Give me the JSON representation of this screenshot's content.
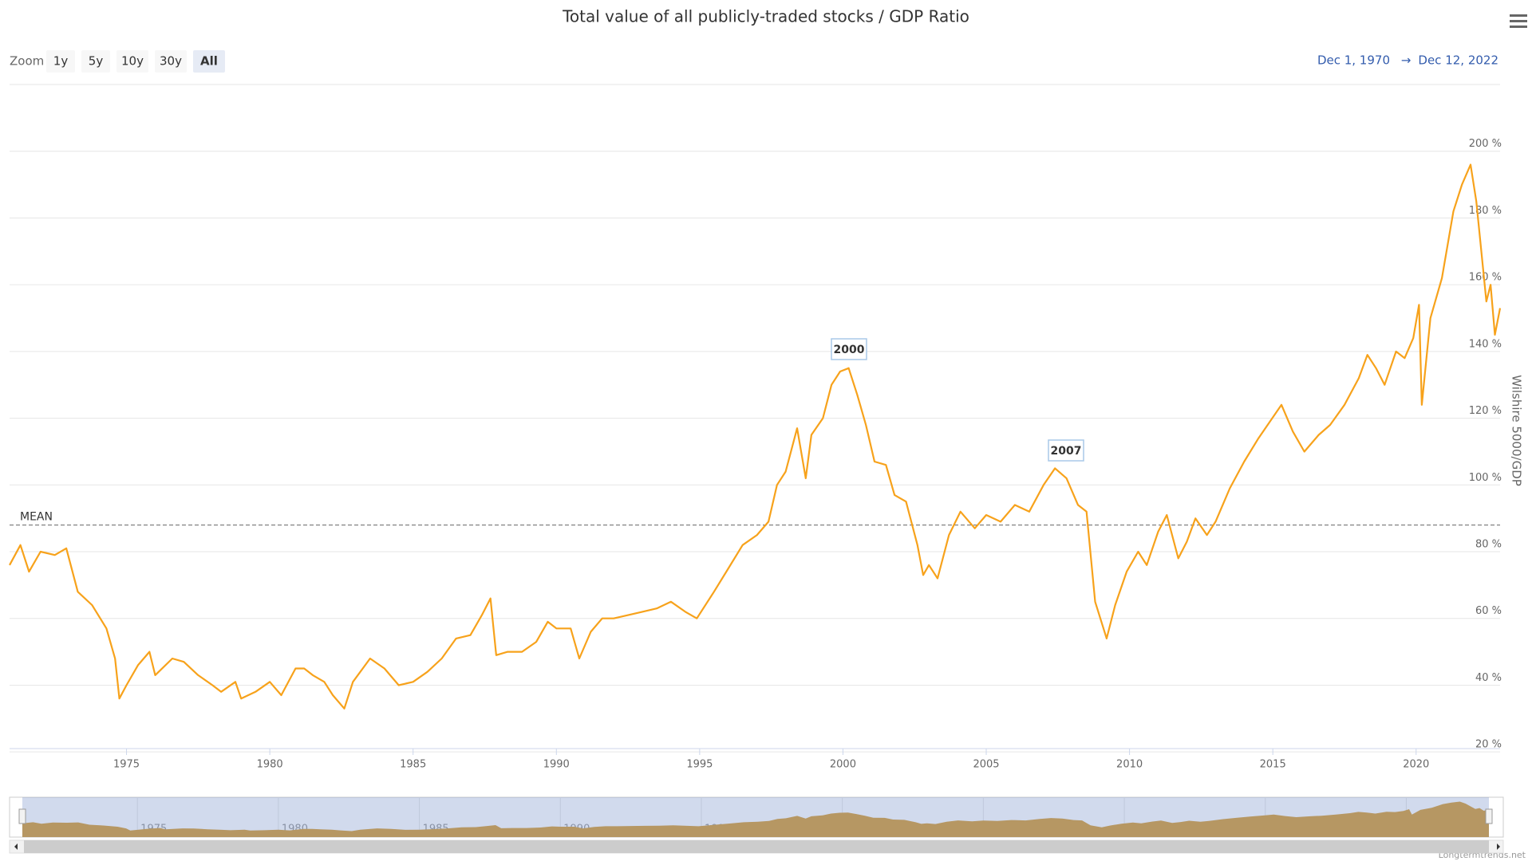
{
  "chart_data": {
    "type": "line",
    "title": "Total value of all publicly-traded stocks / GDP Ratio",
    "y_axis_title": "Wilshire 5000/GDP",
    "zoom": {
      "label": "Zoom",
      "buttons": [
        "1y",
        "5y",
        "10y",
        "30y",
        "All"
      ],
      "selected_index": 4
    },
    "range": {
      "from": "Dec 1, 1970",
      "arrow": "→",
      "to": "Dec 12, 2022"
    },
    "credits": "Longtermtrends.net",
    "mean": {
      "label": "MEAN",
      "value": 88
    },
    "annotations": [
      "2000",
      "2007"
    ],
    "x": [
      1970.92,
      1971.3,
      1971.6,
      1972.0,
      1972.5,
      1972.9,
      1973.3,
      1973.8,
      1974.3,
      1974.6,
      1974.75,
      1975.0,
      1975.4,
      1975.8,
      1976.0,
      1976.6,
      1977.0,
      1977.5,
      1978.0,
      1978.3,
      1978.8,
      1979.0,
      1979.5,
      1980.0,
      1980.4,
      1980.9,
      1981.2,
      1981.5,
      1981.9,
      1982.2,
      1982.6,
      1982.9,
      1983.5,
      1984.0,
      1984.5,
      1985.0,
      1985.5,
      1986.0,
      1986.5,
      1987.0,
      1987.4,
      1987.7,
      1987.9,
      1988.3,
      1988.8,
      1989.3,
      1989.7,
      1990.0,
      1990.5,
      1990.8,
      1991.2,
      1991.6,
      1992.0,
      1992.5,
      1993.0,
      1993.5,
      1994.0,
      1994.5,
      1994.9,
      1995.5,
      1996.0,
      1996.5,
      1997.0,
      1997.4,
      1997.7,
      1998.0,
      1998.4,
      1998.7,
      1998.9,
      1999.3,
      1999.6,
      1999.9,
      2000.2,
      2000.5,
      2000.8,
      2001.1,
      2001.5,
      2001.8,
      2002.2,
      2002.6,
      2002.8,
      2003.0,
      2003.3,
      2003.7,
      2004.1,
      2004.6,
      2005.0,
      2005.5,
      2006.0,
      2006.5,
      2007.0,
      2007.4,
      2007.8,
      2008.2,
      2008.5,
      2008.8,
      2009.2,
      2009.5,
      2009.9,
      2010.3,
      2010.6,
      2011.0,
      2011.3,
      2011.7,
      2012.0,
      2012.3,
      2012.7,
      2013.0,
      2013.5,
      2014.0,
      2014.5,
      2014.9,
      2015.3,
      2015.7,
      2016.1,
      2016.6,
      2017.0,
      2017.5,
      2018.0,
      2018.3,
      2018.6,
      2018.9,
      2019.3,
      2019.6,
      2019.9,
      2020.1,
      2020.2,
      2020.5,
      2020.9,
      2021.3,
      2021.6,
      2021.9,
      2022.1,
      2022.45,
      2022.6,
      2022.75,
      2022.93
    ],
    "series": [
      {
        "name": "Wilshire 5000/GDP",
        "color": "#f7a21b",
        "values": [
          76,
          82,
          74,
          80,
          79,
          81,
          68,
          64,
          57,
          48,
          36,
          40,
          46,
          50,
          43,
          48,
          47,
          43,
          40,
          38,
          41,
          36,
          38,
          41,
          37,
          45,
          45,
          43,
          41,
          37,
          33,
          41,
          48,
          45,
          40,
          41,
          44,
          48,
          54,
          55,
          61,
          66,
          49,
          50,
          50,
          53,
          59,
          57,
          57,
          48,
          56,
          60,
          60,
          61,
          62,
          63,
          65,
          62,
          60,
          68,
          75,
          82,
          85,
          89,
          100,
          104,
          117,
          102,
          115,
          120,
          130,
          134,
          135,
          127,
          118,
          107,
          106,
          97,
          95,
          82,
          73,
          76,
          72,
          85,
          92,
          87,
          91,
          89,
          94,
          92,
          100,
          105,
          102,
          94,
          92,
          65,
          54,
          64,
          74,
          80,
          76,
          86,
          91,
          78,
          83,
          90,
          85,
          89,
          99,
          107,
          114,
          119,
          124,
          116,
          110,
          115,
          118,
          124,
          132,
          139,
          135,
          130,
          140,
          138,
          144,
          154,
          124,
          150,
          162,
          182,
          190,
          196,
          185,
          155,
          160,
          145,
          153
        ]
      }
    ],
    "xlim": [
      1970.92,
      2022.93
    ],
    "xticks": [
      1975,
      1980,
      1985,
      1990,
      1995,
      2000,
      2005,
      2010,
      2015,
      2020
    ],
    "ylim": [
      21,
      220
    ],
    "yticks": [
      {
        "value": 20,
        "label": "20 %"
      },
      {
        "value": 40,
        "label": "40 %"
      },
      {
        "value": 60,
        "label": "60 %"
      },
      {
        "value": 80,
        "label": "80 %"
      },
      {
        "value": 100,
        "label": "100 %"
      },
      {
        "value": 120,
        "label": "120 %"
      },
      {
        "value": 140,
        "label": "140 %"
      },
      {
        "value": 160,
        "label": "160 %"
      },
      {
        "value": 180,
        "label": "180 %"
      },
      {
        "value": 200,
        "label": "200 %"
      }
    ],
    "grid": true
  }
}
